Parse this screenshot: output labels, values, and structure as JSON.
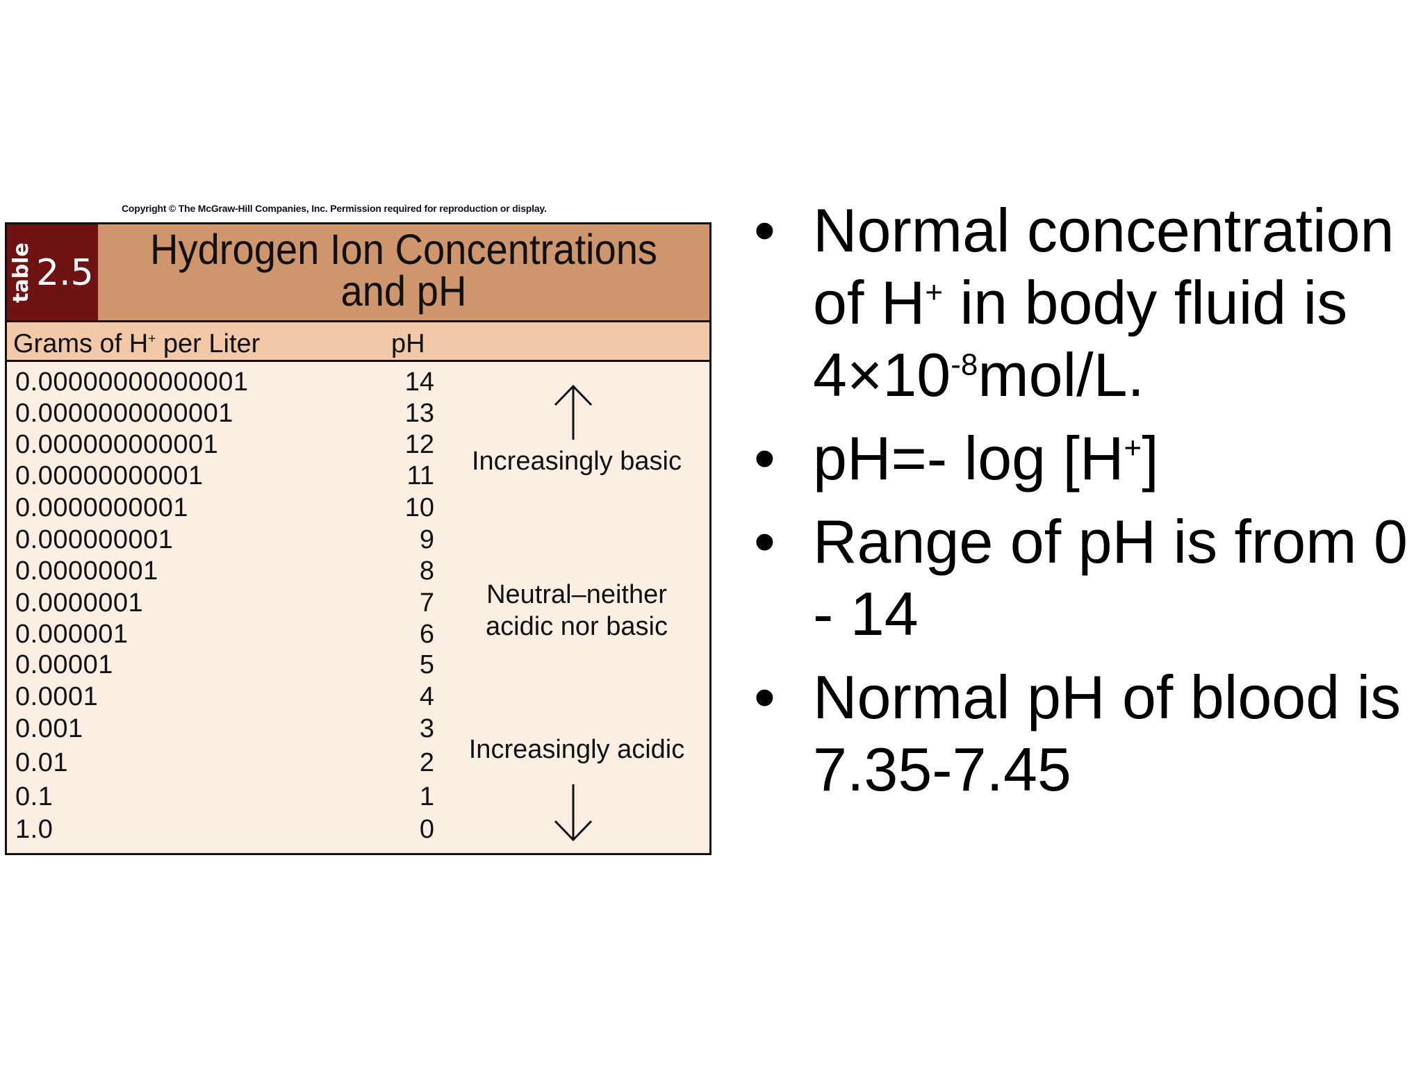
{
  "table": {
    "copyright": "Copyright © The McGraw-Hill Companies, Inc. Permission required for reproduction or display.",
    "badge_word": "table",
    "badge_number": "2.5",
    "title_line1": "Hydrogen Ion Concentrations",
    "title_line2": "and pH",
    "col_grams_prefix": "Grams of H",
    "col_grams_sup": "+",
    "col_grams_suffix": " per Liter",
    "col_ph": "pH",
    "rows": [
      {
        "grams": "0.00000000000001",
        "ph": "14"
      },
      {
        "grams": "0.0000000000001",
        "ph": "13"
      },
      {
        "grams": "0.000000000001",
        "ph": "12"
      },
      {
        "grams": "0.00000000001",
        "ph": "11"
      },
      {
        "grams": "0.0000000001",
        "ph": "10"
      },
      {
        "grams": "0.000000001",
        "ph": "9"
      },
      {
        "grams": "0.00000001",
        "ph": "8"
      },
      {
        "grams": "0.0000001",
        "ph": "7"
      },
      {
        "grams": "0.000001",
        "ph": "6"
      },
      {
        "grams": "0.00001",
        "ph": "5"
      },
      {
        "grams": "0.0001",
        "ph": "4"
      },
      {
        "grams": "0.001",
        "ph": "3"
      },
      {
        "grams": "0.01",
        "ph": "2"
      },
      {
        "grams": "0.1",
        "ph": "1"
      },
      {
        "grams": "1.0",
        "ph": "0"
      }
    ],
    "note_basic": "Increasingly basic",
    "note_neutral_line1": "Neutral–neither",
    "note_neutral_line2": "acidic nor basic",
    "note_acidic": "Increasingly acidic"
  },
  "bullets": {
    "b1_text1": "Normal concentration of H",
    "b1_sup1": "+",
    "b1_text2": " in body fluid is 4×10",
    "b1_sup2": "-8",
    "b1_text3": "mol/L.",
    "b2_text1": "pH=- log [H",
    "b2_sup1": "+",
    "b2_text2": "]",
    "b3_text": "Range of pH is from 0 - 14",
    "b4_text": "Normal pH of blood is 7.35-7.45",
    "marker": "•"
  }
}
